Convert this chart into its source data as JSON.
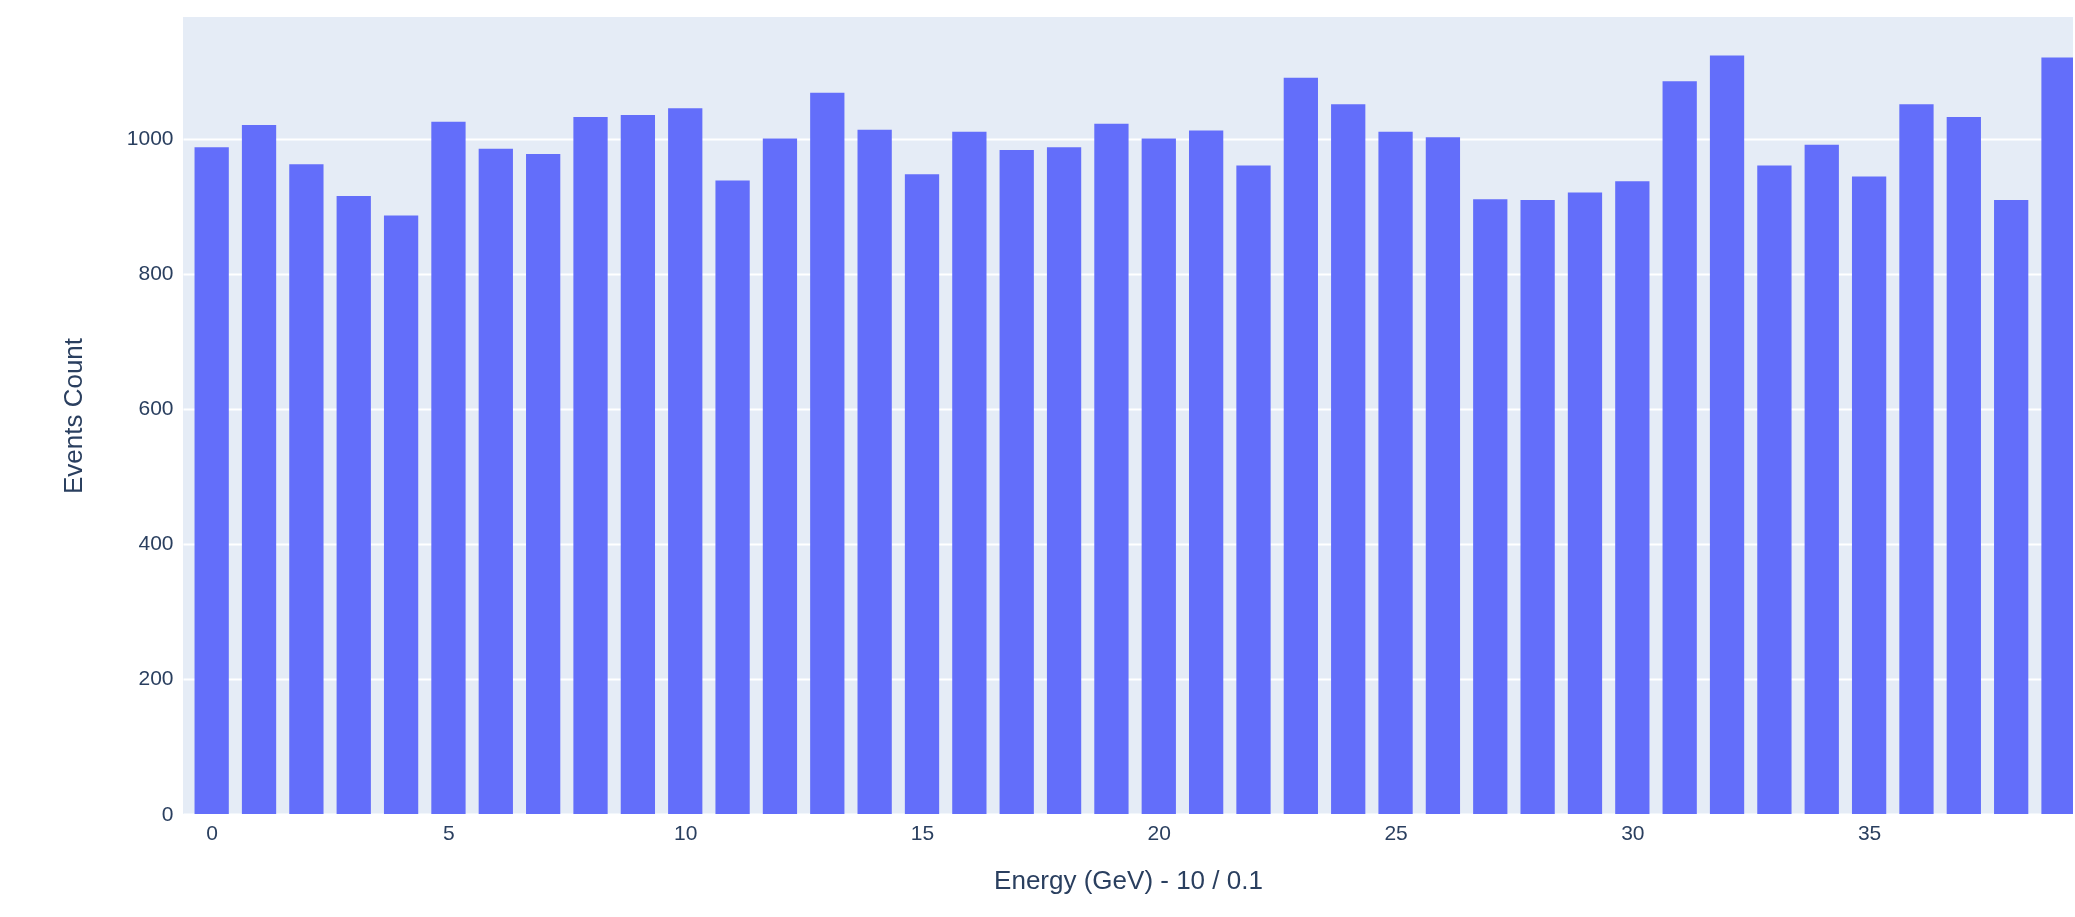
{
  "chart_data": {
    "type": "bar",
    "xlabel": "Energy (GeV) - 10 / 0.1",
    "ylabel": "Events Count",
    "color": "#636efa",
    "x": [
      0,
      1,
      2,
      3,
      4,
      5,
      6,
      7,
      8,
      9,
      10,
      11,
      12,
      13,
      14,
      15,
      16,
      17,
      18,
      19,
      20,
      21,
      22,
      23,
      24,
      25,
      26,
      27,
      28,
      29,
      30,
      31,
      32,
      33,
      34,
      35,
      36,
      37,
      38,
      39
    ],
    "values": [
      987,
      1020,
      962,
      915,
      886,
      1025,
      985,
      977,
      1032,
      1035,
      1045,
      938,
      1000,
      1068,
      1013,
      947,
      1010,
      983,
      987,
      1022,
      1000,
      1012,
      960,
      1090,
      1051,
      1010,
      1002,
      910,
      909,
      920,
      937,
      1085,
      1123,
      960,
      991,
      944,
      1051,
      1032,
      909,
      1120
    ],
    "xlim": [
      -0.5,
      39.2
    ],
    "ylim": [
      0,
      1180
    ],
    "xticks": [
      0,
      5,
      10,
      15,
      20,
      25,
      30,
      35
    ],
    "yticks": [
      0,
      200,
      400,
      600,
      800,
      1000
    ],
    "grid": "y"
  }
}
